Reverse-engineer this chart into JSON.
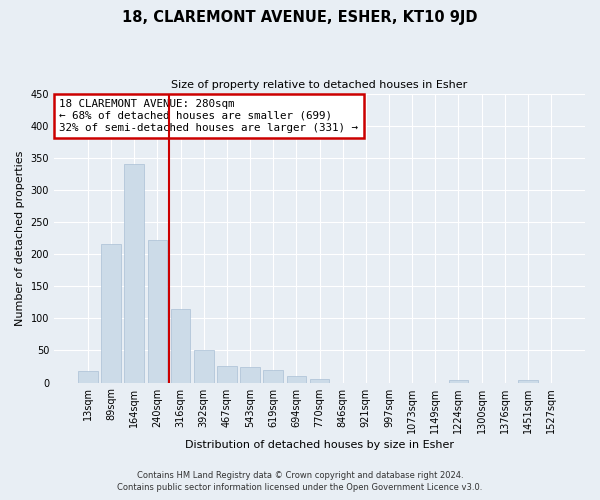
{
  "title": "18, CLAREMONT AVENUE, ESHER, KT10 9JD",
  "subtitle": "Size of property relative to detached houses in Esher",
  "xlabel": "Distribution of detached houses by size in Esher",
  "ylabel": "Number of detached properties",
  "bar_labels": [
    "13sqm",
    "89sqm",
    "164sqm",
    "240sqm",
    "316sqm",
    "392sqm",
    "467sqm",
    "543sqm",
    "619sqm",
    "694sqm",
    "770sqm",
    "846sqm",
    "921sqm",
    "997sqm",
    "1073sqm",
    "1149sqm",
    "1224sqm",
    "1300sqm",
    "1376sqm",
    "1451sqm",
    "1527sqm"
  ],
  "bar_values": [
    18,
    215,
    340,
    222,
    115,
    50,
    26,
    25,
    19,
    10,
    6,
    0,
    0,
    0,
    0,
    0,
    4,
    0,
    0,
    4,
    0
  ],
  "bar_color": "#ccdbe8",
  "bar_edgecolor": "#aac0d5",
  "vline_pos": 3.5,
  "vline_color": "#cc0000",
  "annotation_line1": "18 CLAREMONT AVENUE: 280sqm",
  "annotation_line2": "← 68% of detached houses are smaller (699)",
  "annotation_line3": "32% of semi-detached houses are larger (331) →",
  "annotation_box_edgecolor": "#cc0000",
  "ylim": [
    0,
    450
  ],
  "yticks": [
    0,
    50,
    100,
    150,
    200,
    250,
    300,
    350,
    400,
    450
  ],
  "footer_line1": "Contains HM Land Registry data © Crown copyright and database right 2024.",
  "footer_line2": "Contains public sector information licensed under the Open Government Licence v3.0.",
  "bg_color": "#e8eef4",
  "plot_bg_color": "#e8eef4",
  "grid_color": "#ffffff",
  "title_fontsize": 10.5,
  "subtitle_fontsize": 8,
  "ylabel_fontsize": 8,
  "xlabel_fontsize": 8,
  "tick_fontsize": 7,
  "footer_fontsize": 6
}
